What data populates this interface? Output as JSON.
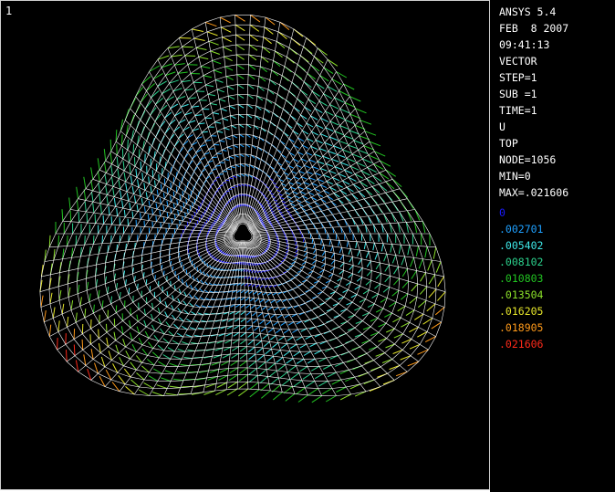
{
  "window": {
    "number": "1"
  },
  "info": {
    "lines": [
      "ANSYS 5.4",
      "FEB  8 2007",
      "09:41:13",
      "VECTOR",
      "STEP=1",
      "SUB =1",
      "TIME=1",
      "U",
      "TOP",
      "NODE=1056",
      "MIN=0",
      "MAX=.021606"
    ]
  },
  "legend": {
    "entries": [
      {
        "label": "0",
        "color": "#1a1aff"
      },
      {
        "label": ".002701",
        "color": "#1ea0ff"
      },
      {
        "label": ".005402",
        "color": "#3ee8e8"
      },
      {
        "label": ".008102",
        "color": "#2bd08c"
      },
      {
        "label": ".010803",
        "color": "#22c522"
      },
      {
        "label": ".013504",
        "color": "#8be02a"
      },
      {
        "label": ".016205",
        "color": "#e6e62a"
      },
      {
        "label": ".018905",
        "color": "#ff9a1a"
      },
      {
        "label": ".021606",
        "color": "#ff2a1a"
      }
    ]
  },
  "colors": {
    "background": "#000000",
    "mesh": "#ffffff",
    "text": "#ffffff"
  }
}
